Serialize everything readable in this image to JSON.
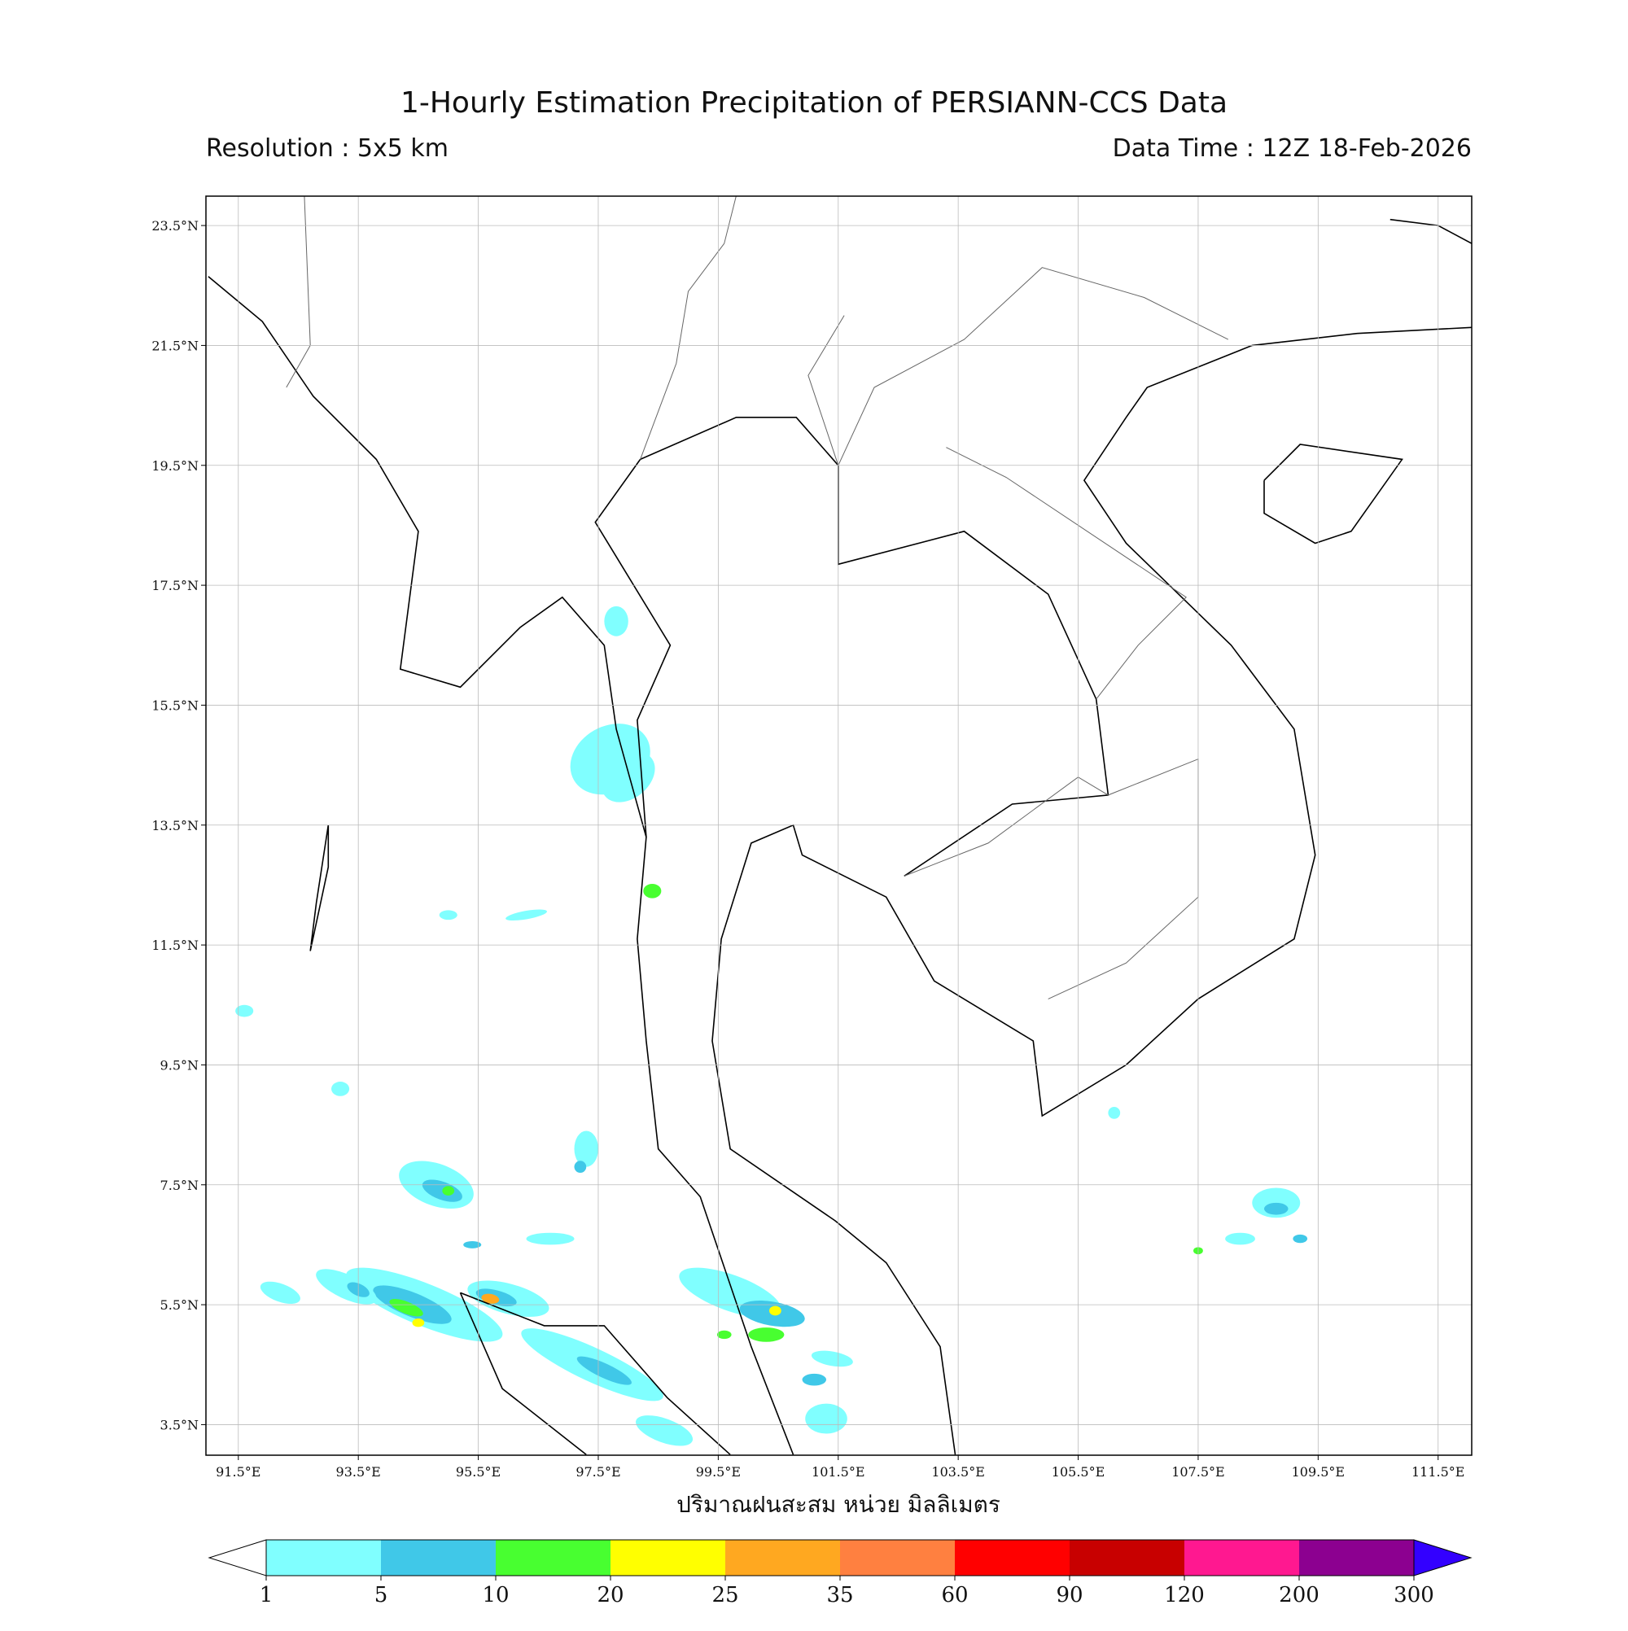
{
  "title": "1-Hourly Estimation Precipitation of PERSIANN-CCS Data",
  "subtitle_left": "Resolution : 5x5 km",
  "subtitle_right": "Data Time : 12Z 18-Feb-2026",
  "map": {
    "xlim": [
      90.96,
      112.06
    ],
    "ylim": [
      2.99,
      23.99
    ],
    "grid": true,
    "xticks": [
      {
        "value": 91.5,
        "label": "91.5°E"
      },
      {
        "value": 93.5,
        "label": "93.5°E"
      },
      {
        "value": 95.5,
        "label": "95.5°E"
      },
      {
        "value": 97.5,
        "label": "97.5°E"
      },
      {
        "value": 99.5,
        "label": "99.5°E"
      },
      {
        "value": 101.5,
        "label": "101.5°E"
      },
      {
        "value": 103.5,
        "label": "103.5°E"
      },
      {
        "value": 105.5,
        "label": "105.5°E"
      },
      {
        "value": 107.5,
        "label": "107.5°E"
      },
      {
        "value": 109.5,
        "label": "109.5°E"
      },
      {
        "value": 111.5,
        "label": "111.5°E"
      }
    ],
    "yticks": [
      {
        "value": 3.5,
        "label": "3.5°N"
      },
      {
        "value": 5.5,
        "label": "5.5°N"
      },
      {
        "value": 7.5,
        "label": "7.5°N"
      },
      {
        "value": 9.5,
        "label": "9.5°N"
      },
      {
        "value": 11.5,
        "label": "11.5°N"
      },
      {
        "value": 13.5,
        "label": "13.5°N"
      },
      {
        "value": 15.5,
        "label": "15.5°N"
      },
      {
        "value": 17.5,
        "label": "17.5°N"
      },
      {
        "value": 19.5,
        "label": "19.5°N"
      },
      {
        "value": 21.5,
        "label": "21.5°N"
      },
      {
        "value": 23.5,
        "label": "23.5°N"
      }
    ],
    "xlabel": "ปริมาณฝนสะสม หน่วย มิลลิเมตร"
  },
  "colorbar": {
    "levels": [
      1,
      5,
      10,
      20,
      25,
      35,
      60,
      90,
      120,
      200,
      300
    ],
    "colors": [
      "#80ffff",
      "#40c8e8",
      "#48ff30",
      "#ffff00",
      "#ffa820",
      "#ff8040",
      "#ff0000",
      "#c80000",
      "#ff1890",
      "#8c0090"
    ],
    "under_color": "#ffffff",
    "over_color": "#3300ff"
  }
}
